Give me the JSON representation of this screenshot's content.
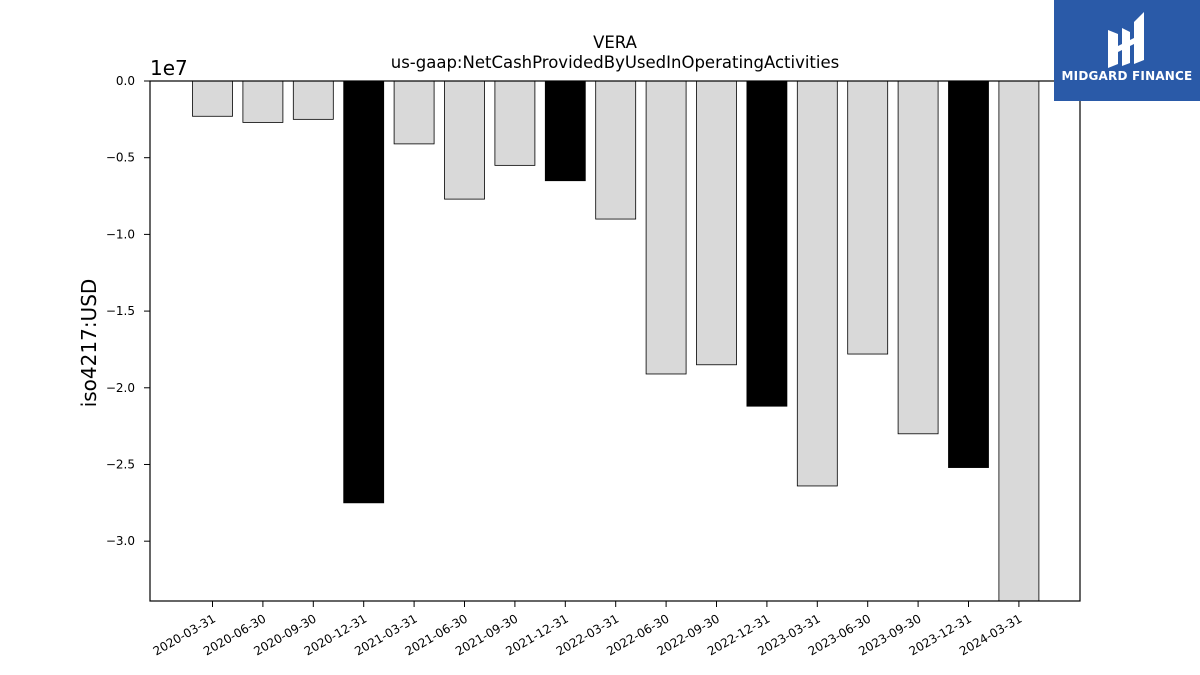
{
  "brand": {
    "name": "MIDGARD FINANCE",
    "bg_color": "#2a5aa8"
  },
  "chart_data": {
    "type": "bar",
    "title": "VERA",
    "subtitle": "us-gaap:NetCashProvidedByUsedInOperatingActivities",
    "xlabel": "",
    "ylabel": "iso4217:USD",
    "y_offset_label": "1e7",
    "ylim": [
      -33900000.0,
      0
    ],
    "yticks": [
      0,
      -5000000,
      -10000000,
      -15000000,
      -20000000,
      -25000000,
      -30000000
    ],
    "ytick_labels": [
      "0.0",
      "−0.5",
      "−1.0",
      "−1.5",
      "−2.0",
      "−2.5",
      "−3.0"
    ],
    "grid": false,
    "categories": [
      "2020-03-31",
      "2020-06-30",
      "2020-09-30",
      "2020-12-31",
      "2021-03-31",
      "2021-06-30",
      "2021-09-30",
      "2021-12-31",
      "2022-03-31",
      "2022-06-30",
      "2022-09-30",
      "2022-12-31",
      "2023-03-31",
      "2023-06-30",
      "2023-09-30",
      "2023-12-31",
      "2024-03-31"
    ],
    "values": [
      -2300000,
      -2700000,
      -2500000,
      -27500000,
      -4100000,
      -7700000,
      -5500000,
      -6500000,
      -9000000,
      -19100000,
      -18500000,
      -21200000,
      -26400000,
      -17800000,
      -23000000,
      -25200000,
      -34500000
    ],
    "bar_colors": [
      "#d9d9d9",
      "#d9d9d9",
      "#d9d9d9",
      "#000000",
      "#d9d9d9",
      "#d9d9d9",
      "#d9d9d9",
      "#000000",
      "#d9d9d9",
      "#d9d9d9",
      "#d9d9d9",
      "#000000",
      "#d9d9d9",
      "#d9d9d9",
      "#d9d9d9",
      "#000000",
      "#d9d9d9"
    ]
  }
}
